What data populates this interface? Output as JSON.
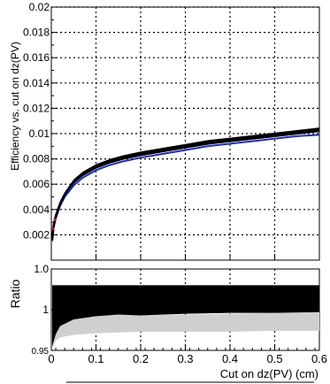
{
  "chart_data": [
    {
      "type": "line",
      "panel": "top",
      "ylabel": "Efficiency vs. cut on dz(PV)",
      "ylim": [
        0,
        0.02
      ],
      "xlim": [
        0,
        0.6
      ],
      "y_tick_labels": [
        "0.02",
        "0.018",
        "0.016",
        "0.014",
        "0.012",
        "0.01",
        "0.008",
        "0.006",
        "0.004",
        "0.002"
      ],
      "grid": true,
      "series": [
        {
          "color": "#000000",
          "band_color": "#000000",
          "x": [
            0.002,
            0.005,
            0.01,
            0.02,
            0.03,
            0.05,
            0.07,
            0.1,
            0.13,
            0.16,
            0.2,
            0.25,
            0.3,
            0.35,
            0.4,
            0.45,
            0.5,
            0.55,
            0.6
          ],
          "y": [
            0.0016,
            0.0027,
            0.0035,
            0.0045,
            0.0052,
            0.0062,
            0.0068,
            0.0074,
            0.0078,
            0.0081,
            0.0084,
            0.0087,
            0.009,
            0.0093,
            0.0095,
            0.0097,
            0.0099,
            0.0101,
            0.0103
          ]
        },
        {
          "color": "#1f2fb0",
          "x": [
            0.002,
            0.005,
            0.01,
            0.02,
            0.03,
            0.05,
            0.07,
            0.1,
            0.13,
            0.16,
            0.2,
            0.25,
            0.3,
            0.35,
            0.4,
            0.45,
            0.5,
            0.55,
            0.6
          ],
          "y": [
            0.0015,
            0.0025,
            0.0033,
            0.0043,
            0.005,
            0.0059,
            0.0065,
            0.0071,
            0.0075,
            0.0078,
            0.0081,
            0.0084,
            0.0087,
            0.009,
            0.0092,
            0.0094,
            0.0096,
            0.0098,
            0.0099
          ]
        }
      ]
    },
    {
      "type": "line",
      "panel": "bottom",
      "ylabel": "Ratio",
      "xlabel": "Cut on dz(PV) (cm)",
      "ylim": [
        0.95,
        1.05
      ],
      "xlim": [
        0,
        0.6
      ],
      "y_tick_labels": [
        "1.0",
        "1",
        "0.95"
      ],
      "x_tick_labels": [
        "0",
        "0.1",
        "0.2",
        "0.3",
        "0.4",
        "0.5",
        "0.6"
      ],
      "grid": true,
      "gray_band": {
        "color": "#cfcfcf",
        "x": [
          0.002,
          0.01,
          0.02,
          0.05,
          0.1,
          0.15,
          0.2,
          0.3,
          0.4,
          0.5,
          0.6
        ],
        "low": [
          0.953,
          0.962,
          0.966,
          0.969,
          0.971,
          0.972,
          0.973,
          0.973,
          0.973,
          0.974,
          0.974
        ],
        "high": [
          0.975,
          0.985,
          0.99,
          0.995,
          0.998,
          0.996,
          0.993,
          0.994,
          0.995,
          0.996,
          0.997
        ]
      },
      "black_band": {
        "color": "#000000",
        "x": [
          0.002,
          0.01,
          0.02,
          0.05,
          0.1,
          0.15,
          0.2,
          0.3,
          0.4,
          0.5,
          0.6
        ],
        "low": [
          0.955,
          0.97,
          0.98,
          0.988,
          0.992,
          0.994,
          0.993,
          0.995,
          0.996,
          0.996,
          0.997
        ],
        "high": [
          1.03,
          1.03,
          1.03,
          1.03,
          1.03,
          1.03,
          1.03,
          1.03,
          1.03,
          1.03,
          1.03
        ]
      }
    }
  ]
}
